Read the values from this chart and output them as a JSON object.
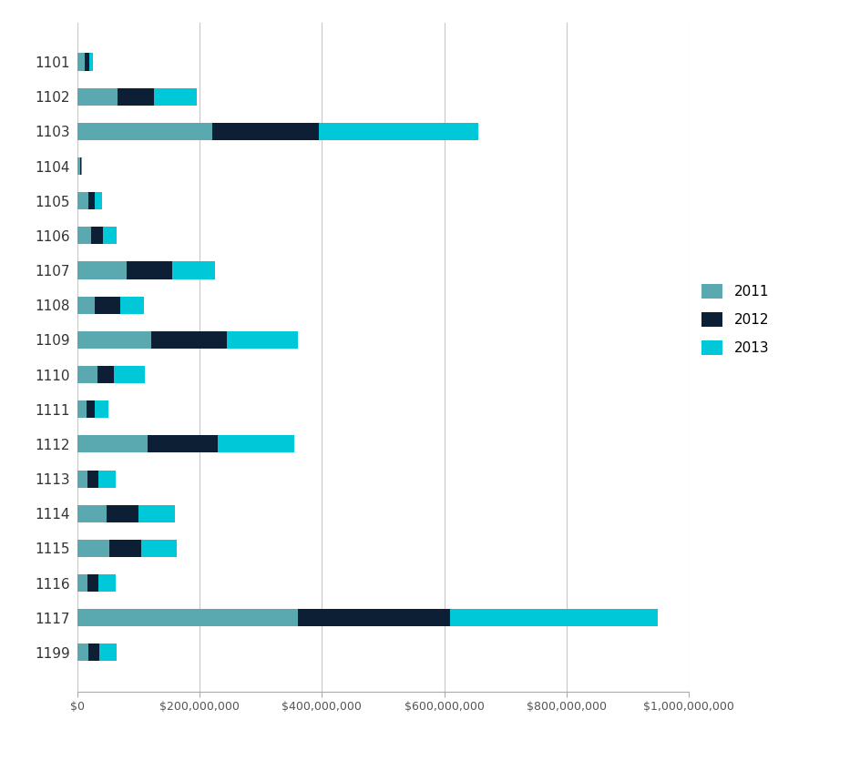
{
  "categories": [
    "1101",
    "1102",
    "1103",
    "1104",
    "1105",
    "1106",
    "1107",
    "1108",
    "1109",
    "1110",
    "1111",
    "1112",
    "1113",
    "1114",
    "1115",
    "1116",
    "1117",
    "1199"
  ],
  "values_2011": [
    12000000,
    65000000,
    220000000,
    4000000,
    18000000,
    22000000,
    80000000,
    28000000,
    120000000,
    32000000,
    15000000,
    115000000,
    16000000,
    48000000,
    52000000,
    16000000,
    360000000,
    18000000
  ],
  "values_2012": [
    8000000,
    60000000,
    175000000,
    2000000,
    10000000,
    20000000,
    75000000,
    42000000,
    125000000,
    28000000,
    13000000,
    115000000,
    18000000,
    52000000,
    52000000,
    18000000,
    250000000,
    18000000
  ],
  "values_2013": [
    5000000,
    70000000,
    260000000,
    2000000,
    12000000,
    22000000,
    70000000,
    38000000,
    115000000,
    50000000,
    22000000,
    125000000,
    28000000,
    60000000,
    58000000,
    28000000,
    340000000,
    28000000
  ],
  "color_2011": "#5aa8b0",
  "color_2012": "#0d1f35",
  "color_2013": "#00c8d8",
  "legend_labels": [
    "2011",
    "2012",
    "2013"
  ],
  "xlim": [
    0,
    1000000000
  ],
  "background_color": "#ffffff",
  "grid_color": "#c8c8c8"
}
